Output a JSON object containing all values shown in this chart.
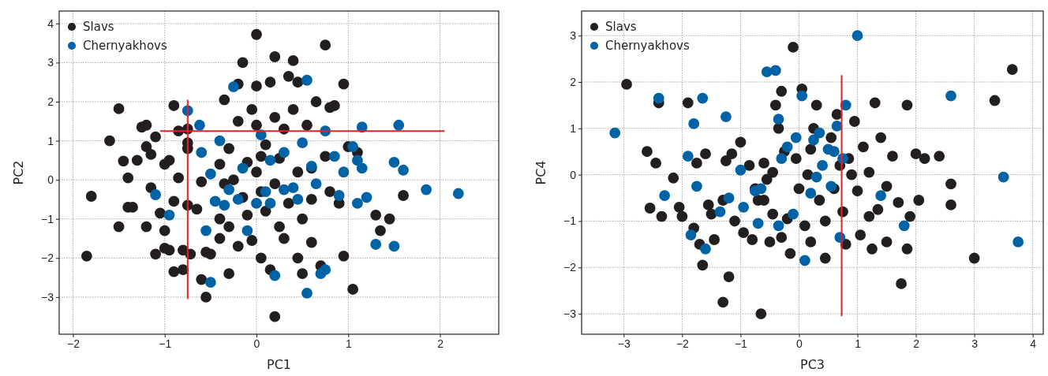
{
  "chart_data": [
    {
      "type": "scatter",
      "xlabel": "PC1",
      "ylabel": "PC2",
      "xlim": [
        -2.15,
        2.64
      ],
      "ylim": [
        -3.95,
        4.32
      ],
      "xticks": [
        {
          "value": -2,
          "label": "−2"
        },
        {
          "value": -1,
          "label": "−1"
        },
        0,
        1,
        2
      ],
      "yticks": [
        {
          "value": -3,
          "label": "−3"
        },
        {
          "value": -2,
          "label": "−2"
        },
        {
          "value": -1,
          "label": "−1"
        },
        0,
        1,
        2,
        3,
        4
      ],
      "grid": true,
      "legend": "top left",
      "series": [
        {
          "name": "Slavs",
          "color": "#231f20",
          "marker": "circle",
          "x": [
            -1.85,
            -1.8,
            -1.6,
            -1.5,
            -1.5,
            -1.45,
            -1.4,
            -1.4,
            -1.35,
            -1.3,
            -1.25,
            -1.2,
            -1.2,
            -1.2,
            -1.15,
            -1.15,
            -1.1,
            -1.1,
            -1.05,
            -1.0,
            -1.0,
            -1.0,
            -0.95,
            -0.95,
            -0.9,
            -0.9,
            -0.9,
            -0.85,
            -0.85,
            -0.8,
            -0.8,
            -0.75,
            -0.75,
            -0.75,
            -0.75,
            -0.72,
            -0.65,
            -0.6,
            -0.6,
            -0.55,
            -0.55,
            -0.5,
            -0.4,
            -0.4,
            -0.4,
            -0.35,
            -0.3,
            -0.3,
            -0.3,
            -0.25,
            -0.2,
            -0.2,
            -0.15,
            -0.15,
            -0.1,
            -0.1,
            -0.05,
            -0.05,
            0.0,
            0.0,
            0.0,
            0.0,
            0.05,
            0.05,
            0.1,
            0.1,
            0.15,
            0.15,
            0.2,
            0.2,
            0.2,
            0.2,
            0.25,
            0.25,
            0.3,
            0.35,
            0.35,
            0.4,
            0.4,
            0.45,
            0.45,
            0.45,
            0.5,
            0.55,
            0.6,
            0.6,
            0.65,
            0.7,
            0.75,
            0.75,
            0.8,
            0.8,
            0.85,
            0.9,
            0.95,
            0.95,
            1.0,
            1.05,
            1.3,
            1.35,
            1.45,
            1.6,
            1.1,
            0.3,
            -0.2,
            0.5,
            0.05,
            -0.35,
            0.6
          ],
          "values": [
            -1.95,
            -0.42,
            1.0,
            1.82,
            -1.2,
            0.48,
            0.05,
            -0.7,
            -0.7,
            0.5,
            1.35,
            1.4,
            0.85,
            -1.2,
            -0.2,
            0.65,
            1.1,
            -1.9,
            -0.85,
            -1.75,
            -1.3,
            0.4,
            -1.8,
            0.5,
            1.9,
            -2.35,
            -0.55,
            0.05,
            1.25,
            -1.8,
            -2.3,
            -0.65,
            1.3,
            0.95,
            0.8,
            -1.9,
            -0.75,
            -2.55,
            -0.05,
            -1.85,
            -3.0,
            -1.9,
            0.4,
            -1.0,
            -1.5,
            2.05,
            -2.4,
            -1.2,
            0.8,
            0.0,
            1.5,
            2.45,
            3.0,
            -0.45,
            -0.9,
            0.45,
            1.8,
            -1.55,
            3.72,
            2.4,
            1.4,
            0.2,
            -0.3,
            -2.0,
            0.9,
            -0.8,
            2.5,
            -2.3,
            3.15,
            1.6,
            -0.1,
            -3.5,
            -1.2,
            0.55,
            1.3,
            2.65,
            -0.6,
            3.05,
            1.8,
            0.2,
            -2.0,
            2.5,
            -1.0,
            1.4,
            0.3,
            -1.6,
            2.0,
            -2.2,
            3.45,
            0.6,
            1.85,
            -0.3,
            1.9,
            -0.6,
            2.45,
            -1.95,
            0.85,
            -2.8,
            -0.9,
            -1.3,
            -1.0,
            -0.4,
            0.7,
            -1.5,
            -1.7,
            -2.4,
            0.6,
            -0.1,
            -0.5
          ]
        },
        {
          "name": "Chernyakhovs",
          "color": "#0063a6",
          "marker": "circle",
          "x": [
            -1.1,
            -0.95,
            -0.75,
            -0.62,
            -0.55,
            -0.5,
            -0.5,
            -0.45,
            -0.35,
            -0.4,
            -0.25,
            -0.3,
            -0.2,
            -0.1,
            0.0,
            0.05,
            0.1,
            0.15,
            0.2,
            0.3,
            0.3,
            0.4,
            0.5,
            0.55,
            0.55,
            0.65,
            0.7,
            0.75,
            0.6,
            0.85,
            0.9,
            0.95,
            1.05,
            1.1,
            1.15,
            1.1,
            1.2,
            1.3,
            1.5,
            1.5,
            1.55,
            1.6,
            1.85,
            2.2,
            1.15,
            0.75,
            -0.6,
            -0.15,
            0.15,
            0.45
          ],
          "values": [
            -0.38,
            -0.9,
            1.77,
            1.4,
            -1.3,
            -2.62,
            0.15,
            -0.55,
            -0.65,
            1.0,
            2.38,
            -0.25,
            -0.5,
            -1.3,
            -0.6,
            1.15,
            -0.3,
            0.5,
            -2.45,
            -0.25,
            0.7,
            -0.2,
            0.95,
            2.55,
            -2.9,
            -0.1,
            -2.4,
            -2.3,
            0.35,
            0.6,
            -0.4,
            0.2,
            0.85,
            0.5,
            0.3,
            -0.6,
            -0.45,
            -1.65,
            -1.7,
            0.45,
            1.4,
            0.25,
            -0.25,
            -0.35,
            1.35,
            1.25,
            0.7,
            0.3,
            -0.6,
            -0.5
          ]
        },
        {
          "type": "line",
          "color": "#e8202a",
          "marker": "none",
          "x": [
            -0.75,
            -0.75
          ],
          "values": [
            -3.05,
            2.05
          ]
        },
        {
          "type": "line",
          "color": "#e8202a",
          "marker": "none",
          "x": [
            -1.05,
            2.05
          ],
          "values": [
            1.25,
            1.25
          ]
        }
      ]
    },
    {
      "type": "scatter",
      "xlabel": "PC3",
      "ylabel": "PC4",
      "xlim": [
        -3.72,
        4.18
      ],
      "ylim": [
        -3.44,
        3.53
      ],
      "xticks": [
        {
          "value": -3,
          "label": "−3"
        },
        {
          "value": -2,
          "label": "−2"
        },
        {
          "value": -1,
          "label": "−1"
        },
        0,
        1,
        2,
        3,
        4
      ],
      "yticks": [
        {
          "value": -3,
          "label": "−3"
        },
        {
          "value": -2,
          "label": "−2"
        },
        {
          "value": -1,
          "label": "−1"
        },
        0,
        1,
        2,
        3
      ],
      "grid": true,
      "legend": "top left",
      "series": [
        {
          "name": "Slavs",
          "color": "#231f20",
          "marker": "circle",
          "x": [
            -2.95,
            -2.6,
            -2.55,
            -2.45,
            -2.4,
            -2.35,
            -2.15,
            -2.05,
            -2.0,
            -1.9,
            -1.8,
            -1.7,
            -1.65,
            -1.6,
            -1.55,
            -1.5,
            -1.45,
            -1.3,
            -1.3,
            -1.25,
            -1.2,
            -1.15,
            -1.1,
            -1.0,
            -0.95,
            -0.85,
            -0.8,
            -0.75,
            -0.7,
            -0.65,
            -0.6,
            -0.55,
            -0.5,
            -0.45,
            -0.4,
            -0.35,
            -0.3,
            -0.3,
            -0.25,
            -0.2,
            -0.15,
            -0.1,
            -0.05,
            0.0,
            0.05,
            0.1,
            0.15,
            0.2,
            0.2,
            0.3,
            0.35,
            0.45,
            0.55,
            0.6,
            0.65,
            0.7,
            0.75,
            0.8,
            0.9,
            0.95,
            1.0,
            1.05,
            1.1,
            1.2,
            1.25,
            1.3,
            1.35,
            1.4,
            1.5,
            1.5,
            1.6,
            1.7,
            1.75,
            1.85,
            1.9,
            1.85,
            2.0,
            2.05,
            2.4,
            2.6,
            2.6,
            3.0,
            3.35,
            3.65,
            2.15,
            0.45,
            -0.45,
            0.25,
            -0.6,
            1.2,
            0.85,
            -1.75
          ],
          "values": [
            1.95,
            0.5,
            -0.72,
            0.25,
            1.55,
            -0.9,
            -0.07,
            -0.7,
            -0.9,
            1.55,
            -1.15,
            -1.5,
            -1.95,
            0.45,
            -0.65,
            -0.85,
            -1.4,
            -0.55,
            -2.75,
            0.3,
            -2.2,
            0.45,
            -1.0,
            0.7,
            -1.25,
            0.2,
            -1.4,
            -0.3,
            -0.55,
            -3.0,
            0.25,
            -0.1,
            -1.45,
            -0.85,
            1.5,
            1.0,
            1.8,
            -1.35,
            0.5,
            -0.95,
            -1.7,
            2.75,
            0.35,
            -0.3,
            1.85,
            -1.1,
            0.0,
            0.55,
            -1.45,
            1.5,
            -0.55,
            -1.0,
            0.8,
            -0.3,
            1.3,
            0.2,
            -0.8,
            -1.5,
            0.0,
            1.15,
            -0.35,
            -1.3,
            0.6,
            0.05,
            -1.6,
            1.55,
            -0.75,
            0.8,
            -0.25,
            -1.45,
            0.4,
            -0.6,
            -2.35,
            1.5,
            -0.9,
            -1.6,
            0.45,
            -0.55,
            0.4,
            -0.2,
            -0.65,
            -1.8,
            1.6,
            2.27,
            0.35,
            -1.8,
            0.05,
            1.0,
            -0.55,
            -0.9,
            0.35,
            0.25
          ]
        },
        {
          "name": "Chernyakhovs",
          "color": "#0063a6",
          "marker": "circle",
          "x": [
            -3.15,
            -2.4,
            -2.3,
            -1.9,
            -1.85,
            -1.8,
            -1.75,
            -1.65,
            -1.6,
            -1.35,
            -1.25,
            -1.2,
            -1.0,
            -0.95,
            -0.75,
            -0.7,
            -0.65,
            -0.55,
            -0.4,
            -0.35,
            -0.35,
            -0.3,
            -0.2,
            -0.1,
            0.05,
            0.1,
            0.2,
            0.25,
            0.3,
            0.35,
            0.5,
            0.55,
            0.6,
            0.65,
            0.7,
            0.75,
            0.8,
            1.0,
            1.4,
            1.8,
            2.6,
            3.5,
            3.75,
            -0.05,
            0.4
          ],
          "values": [
            0.9,
            1.65,
            -0.45,
            0.4,
            -1.3,
            1.1,
            -0.25,
            1.65,
            -1.6,
            -0.8,
            1.25,
            -0.5,
            0.1,
            -0.7,
            -0.35,
            -1.05,
            -0.3,
            2.22,
            2.25,
            -1.1,
            1.2,
            0.35,
            0.6,
            -0.85,
            1.7,
            -1.85,
            -0.4,
            0.75,
            -0.05,
            0.9,
            0.55,
            -0.25,
            0.5,
            1.05,
            -1.35,
            0.35,
            1.5,
            3.0,
            -0.45,
            -1.1,
            1.7,
            -0.05,
            -1.45,
            0.8,
            0.2
          ]
        },
        {
          "type": "line",
          "color": "#e8202a",
          "marker": "none",
          "x": [
            0.73,
            0.73
          ],
          "values": [
            -3.05,
            2.15
          ]
        }
      ]
    }
  ]
}
